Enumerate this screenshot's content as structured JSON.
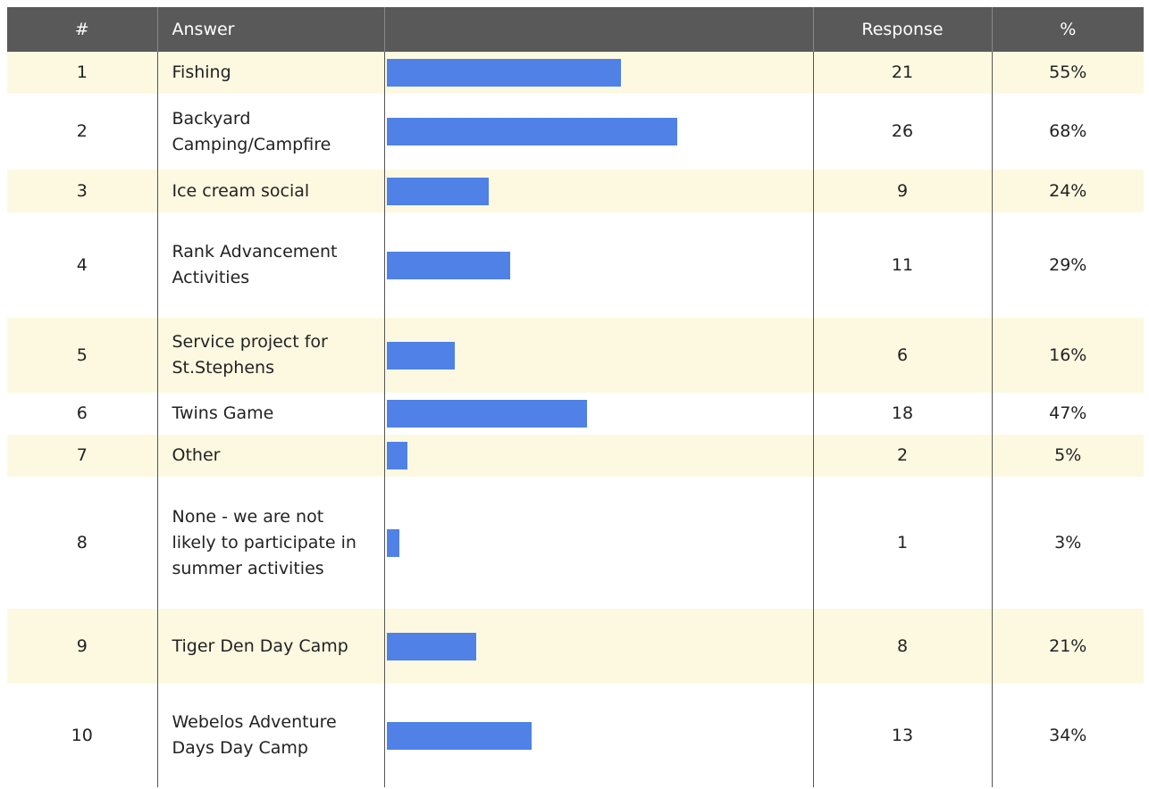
{
  "table": {
    "header": [
      "#",
      "Answer",
      "Response",
      "%"
    ],
    "rows": [
      {
        "n": 1,
        "answer": "Fishing",
        "response": 21,
        "percent": 55,
        "percent_label": "55%"
      },
      {
        "n": 2,
        "answer": "Backyard Camping/Campfire",
        "response": 26,
        "percent": 68,
        "percent_label": "68%"
      },
      {
        "n": 3,
        "answer": "Ice cream social",
        "response": 9,
        "percent": 24,
        "percent_label": "24%"
      },
      {
        "n": 4,
        "answer": "Rank Advancement Activities",
        "response": 11,
        "percent": 29,
        "percent_label": "29%"
      },
      {
        "n": 5,
        "answer": "Service project for St.Stephens",
        "response": 6,
        "percent": 16,
        "percent_label": "16%"
      },
      {
        "n": 6,
        "answer": "Twins Game",
        "response": 18,
        "percent": 47,
        "percent_label": "47%"
      },
      {
        "n": 7,
        "answer": "Other",
        "response": 2,
        "percent": 5,
        "percent_label": "5%"
      },
      {
        "n": 8,
        "answer": "None - we are not likely to participate in summer activities",
        "response": 1,
        "percent": 3,
        "percent_label": "3%"
      },
      {
        "n": 9,
        "answer": "Tiger Den Day Camp",
        "response": 8,
        "percent": 21,
        "percent_label": "21%"
      },
      {
        "n": 10,
        "answer": "Webelos Adventure Days Day Camp",
        "response": 13,
        "percent": 34,
        "percent_label": "34%"
      }
    ]
  }
}
